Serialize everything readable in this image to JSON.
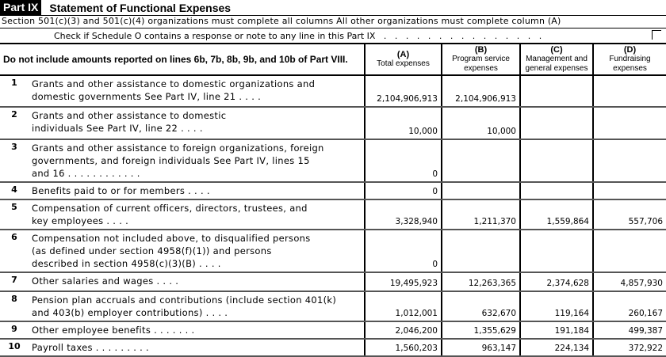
{
  "header": {
    "part": "Part IX",
    "title": "Statement of Functional Expenses",
    "instruction": "Section 501(c)(3) and 501(c)(4) organizations must complete all columns  All other organizations must complete column (A)",
    "schedule_o_check": "Check if Schedule O contains a response or note to any line in this Part IX   .   .   .   .   .   .   .   .   .   .   .   .   .   .   ."
  },
  "columns": {
    "desc": "Do not include amounts reported on lines 6b, 7b, 8b, 9b, and 10b of Part VIII.",
    "a": {
      "letter": "(A)",
      "label": "Total expenses"
    },
    "b": {
      "letter": "(B)",
      "label": "Program service expenses"
    },
    "c": {
      "letter": "(C)",
      "label": "Management and general expenses"
    },
    "d": {
      "letter": "(D)",
      "label": "Fundraising expenses"
    }
  },
  "rows": [
    {
      "num": "1",
      "label": "Grants and other assistance to domestic organizations and\ndomestic governments  See Part IV, line 21   .   .   .   .",
      "a": "2,104,906,913",
      "b": "2,104,906,913",
      "c": "",
      "d": ""
    },
    {
      "num": "2",
      "label": "Grants and other assistance to domestic\nindividuals  See Part IV, line 22   .   .   .   .",
      "a": "10,000",
      "b": "10,000",
      "c": "",
      "d": ""
    },
    {
      "num": "3",
      "label": "Grants and other assistance to foreign organizations, foreign\ngovernments, and foreign individuals  See Part IV, lines 15\nand 16   .   .   .   .   .   .   .   .   .   .   .   .",
      "a": "0",
      "b": "",
      "c": "",
      "d": ""
    },
    {
      "num": "4",
      "label": "Benefits paid to or for members   .   .   .   .",
      "a": "0",
      "b": "",
      "c": "",
      "d": ""
    },
    {
      "num": "5",
      "label": "Compensation of current officers, directors, trustees, and\nkey employees   .   .   .   .",
      "a": "3,328,940",
      "b": "1,211,370",
      "c": "1,559,864",
      "d": "557,706"
    },
    {
      "num": "6",
      "label": "Compensation not included above, to disqualified persons\n(as defined under section 4958(f)(1)) and persons\ndescribed in section 4958(c)(3)(B)   .   .   .   .",
      "a": "0",
      "b": "",
      "c": "",
      "d": ""
    },
    {
      "num": "7",
      "label": "Other salaries and wages   .   .   .   .",
      "a": "19,495,923",
      "b": "12,263,365",
      "c": "2,374,628",
      "d": "4,857,930"
    },
    {
      "num": "8",
      "label": "Pension plan accruals and contributions (include section 401(k)\nand 403(b) employer contributions)   .   .   .   .",
      "a": "1,012,001",
      "b": "632,670",
      "c": "119,164",
      "d": "260,167"
    },
    {
      "num": "9",
      "label": "Other employee benefits   .   .   .   .   .   .   .",
      "a": "2,046,200",
      "b": "1,355,629",
      "c": "191,184",
      "d": "499,387"
    },
    {
      "num": "10",
      "label": "Payroll taxes   .   .   .   .   .   .   .   .   .",
      "a": "1,560,203",
      "b": "963,147",
      "c": "224,134",
      "d": "372,922"
    }
  ]
}
